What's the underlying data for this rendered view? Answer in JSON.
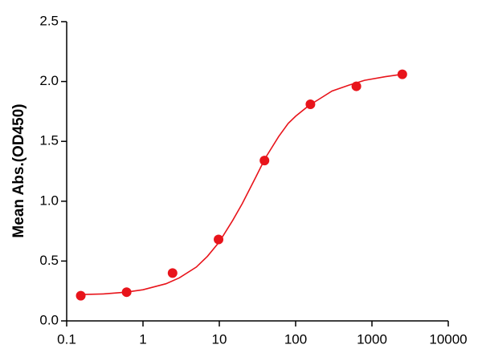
{
  "chart_data": {
    "type": "scatter",
    "y_label": "Mean Abs.(OD450)",
    "log_x": true,
    "xlim": [
      0.1,
      10000
    ],
    "xticks": [
      0.1,
      1,
      10,
      100,
      1000,
      10000
    ],
    "ylim": [
      0,
      2.5
    ],
    "yticks": [
      {
        "value": 0,
        "label": "0.0"
      },
      0.5,
      {
        "value": 1,
        "label": "1.0"
      },
      1.5,
      {
        "value": 2,
        "label": "2.0"
      },
      2.5
    ],
    "series": [
      {
        "kind": "points",
        "color": "#e8141b",
        "x": [
          0.153,
          0.61,
          2.44,
          9.77,
          39.06,
          156.25,
          625,
          2500
        ],
        "values": [
          0.21,
          0.24,
          0.4,
          0.68,
          1.34,
          1.81,
          1.96,
          2.06
        ]
      },
      {
        "kind": "line",
        "color": "#e8141b",
        "x": [
          0.15,
          0.3,
          0.6,
          1,
          2,
          3,
          5,
          7,
          10,
          15,
          20,
          30,
          40,
          60,
          80,
          100,
          150,
          200,
          300,
          500,
          800,
          1500,
          2500
        ],
        "values": [
          0.22,
          0.225,
          0.24,
          0.26,
          0.31,
          0.36,
          0.45,
          0.54,
          0.66,
          0.84,
          0.98,
          1.2,
          1.36,
          1.54,
          1.65,
          1.71,
          1.8,
          1.85,
          1.92,
          1.97,
          2.01,
          2.04,
          2.06
        ]
      }
    ]
  }
}
